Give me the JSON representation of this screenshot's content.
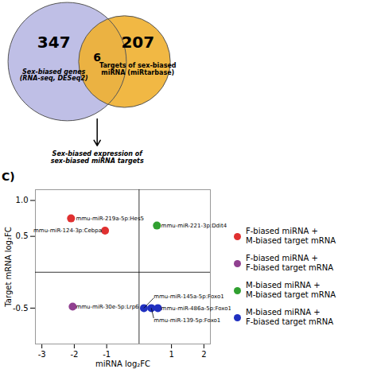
{
  "chart_data": [
    {
      "type": "venn",
      "categories": [
        "Sex-biased genes\n(RNA-seq, DESeq2)",
        "Targets of sex-biased\nmiRNA (miRtarbase)"
      ],
      "values": [
        347,
        207
      ],
      "colors": [
        "#aaaadd",
        "#f0b030"
      ],
      "overlap": 6,
      "annotations": [
        "Sex-biased expression of\nsex-biased miRNA targets"
      ]
    },
    {
      "type": "scatter",
      "title": "C)",
      "xlabel": "miRNA log₂FC",
      "ylabel": "Target mRNA log₂FC",
      "xlim": [
        -3.2,
        2.2
      ],
      "ylim": [
        -1.0,
        1.15
      ],
      "xticks": [
        -3,
        -2,
        -1,
        1,
        2
      ],
      "yticks": [
        {
          "value": 1.0,
          "label": "1.0"
        },
        0.5,
        -0.5
      ],
      "legend": "right",
      "series": [
        {
          "name": "F-biased miRNA +\nM-biased target mRNA",
          "color": "#e03030",
          "x": [
            -2.1,
            -1.05
          ],
          "values": [
            0.75,
            0.58
          ]
        },
        {
          "name": "F-biased miRNA +\nF-biased target mRNA",
          "color": "#904090",
          "x": [
            -2.05
          ],
          "values": [
            -0.48
          ]
        },
        {
          "name": "M-biased miRNA +\nM-biased target mRNA",
          "color": "#30a030",
          "x": [
            0.55
          ],
          "values": [
            0.65
          ]
        },
        {
          "name": "M-biased miRNA +\nF-biased target mRNA",
          "color": "#2030c0",
          "x": [
            0.15,
            0.38,
            0.58
          ],
          "values": [
            -0.5,
            -0.5,
            -0.5
          ]
        }
      ],
      "annotations": [
        {
          "text": "mmu-miR-219a-5p:Hes5",
          "xy": [
            -2.1,
            0.75
          ],
          "xytext": [
            -1.95,
            0.75
          ]
        },
        {
          "text": "mmu-miR-124-3p:Cebpa",
          "xy": [
            -1.05,
            0.58
          ],
          "xytext": [
            -1.15,
            0.58
          ]
        },
        {
          "text": "mmu-miR-221-3p:Ddit4",
          "xy": [
            0.55,
            0.65
          ],
          "xytext": [
            0.68,
            0.65
          ]
        },
        {
          "text": "mmu-miR-30e-5p:Lrp6",
          "xy": [
            -2.05,
            -0.48
          ],
          "xytext": [
            -1.95,
            -0.48
          ]
        },
        {
          "text": "mmu-miR-145a-5p:Foxo1",
          "xy": [
            0.15,
            -0.5
          ],
          "xytext": [
            0.45,
            -0.36
          ]
        },
        {
          "text": "mmu-miR-486a-5p:Foxo1",
          "xy": [
            0.58,
            -0.5
          ],
          "xytext": [
            0.68,
            -0.5
          ]
        },
        {
          "text": "mmu-miR-139-5p:Foxo1",
          "xy": [
            0.38,
            -0.5
          ],
          "xytext": [
            0.45,
            -0.64
          ]
        }
      ]
    }
  ]
}
